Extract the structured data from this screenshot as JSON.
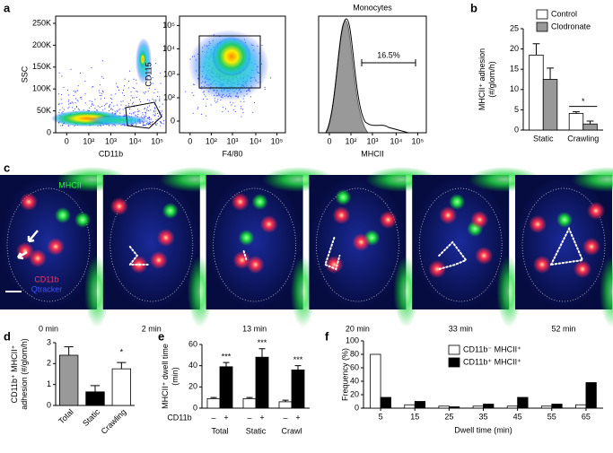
{
  "panel_labels": [
    "a",
    "b",
    "c",
    "d",
    "e",
    "f"
  ],
  "flow_panels": [
    {
      "ylabel": "SSC",
      "xlabel": "CD11b",
      "yticks": [
        "0",
        "50K",
        "100K",
        "150K",
        "200K",
        "250K"
      ],
      "xticks": [
        "0",
        "10²",
        "10³",
        "10⁴",
        "10⁵"
      ]
    },
    {
      "ylabel": "CD115",
      "xlabel": "F4/80",
      "yticks": [
        "0",
        "10²",
        "10³",
        "10⁴",
        "10⁵"
      ],
      "xticks": [
        "0",
        "10²",
        "10³",
        "10⁴",
        "10⁵"
      ]
    },
    {
      "title": "Monocytes",
      "annotation": "16.5%",
      "xlabel": "MHCII",
      "xticks": [
        "0",
        "10²",
        "10³",
        "10⁴",
        "10⁵"
      ]
    }
  ],
  "microscopy": {
    "channel_labels": [
      "MHCII",
      "CD11b",
      "Qtracker"
    ],
    "times": [
      "0 min",
      "2 min",
      "13 min",
      "20 min",
      "33 min",
      "52 min"
    ]
  },
  "chart_data": [
    {
      "type": "bar",
      "ylabel": [
        "MHCII⁺ adhesion",
        "(#/glom/h)"
      ],
      "categories": [
        "Static",
        "Crawling"
      ],
      "series": [
        {
          "name": "Control",
          "color": "#ffffff",
          "values": [
            18.5,
            4.1
          ],
          "errors": [
            2.8,
            0.4
          ]
        },
        {
          "name": "Clodronate",
          "color": "#999999",
          "values": [
            12.5,
            1.5
          ],
          "errors": [
            2.8,
            0.7
          ]
        }
      ],
      "ylim": [
        0,
        25
      ],
      "yticks": [
        0,
        5,
        10,
        15,
        20,
        25
      ],
      "annotation": "*"
    },
    {
      "type": "bar",
      "ylabel": [
        "CD11b⁺ MHCII⁺",
        "adhesion (#/glom/h)"
      ],
      "categories": [
        "Total",
        "Static",
        "Crawling"
      ],
      "values": [
        2.4,
        0.65,
        1.75
      ],
      "errors": [
        0.4,
        0.3,
        0.3
      ],
      "colors": [
        "#999999",
        "#000000",
        "#ffffff"
      ],
      "ylim": [
        0,
        3
      ],
      "yticks": [
        0,
        1,
        2,
        3
      ],
      "annotation": "*"
    },
    {
      "type": "bar",
      "ylabel": [
        "MHCII⁺ dwell time",
        "(min)"
      ],
      "row_label": "CD11b",
      "categories": [
        "Total",
        "Static",
        "Crawl"
      ],
      "series": [
        {
          "name": "–",
          "color": "#ffffff",
          "values": [
            9,
            9,
            6
          ],
          "errors": [
            1,
            1,
            1.5
          ]
        },
        {
          "name": "+",
          "color": "#000000",
          "values": [
            39,
            48,
            36
          ],
          "errors": [
            4,
            8,
            4
          ]
        }
      ],
      "ylim": [
        0,
        60
      ],
      "yticks": [
        0,
        20,
        40,
        60
      ],
      "annotations": [
        "***",
        "***",
        "***"
      ]
    },
    {
      "type": "bar",
      "ylabel": [
        "Frequency (%)"
      ],
      "xlabel": "Dwell time (min)",
      "x": [
        5,
        15,
        25,
        35,
        45,
        55,
        65
      ],
      "xlim": [
        0,
        70
      ],
      "xticks": [
        5,
        15,
        25,
        35,
        45,
        55,
        65
      ],
      "series": [
        {
          "name": "CD11b⁻ MHCII⁺",
          "color": "#ffffff",
          "values": [
            80,
            5,
            3,
            3,
            3,
            3,
            5
          ]
        },
        {
          "name": "CD11b⁺ MHCII⁺",
          "color": "#000000",
          "values": [
            16,
            10,
            2,
            6,
            16,
            6,
            38
          ]
        }
      ],
      "ylim": [
        0,
        100
      ],
      "yticks": [
        0,
        20,
        40,
        60,
        80,
        100
      ]
    }
  ]
}
